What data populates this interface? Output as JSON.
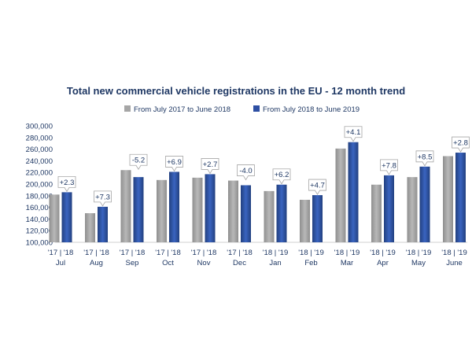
{
  "chart_data": {
    "type": "bar",
    "title": "Total new commercial vehicle registrations in the EU - 12 month trend",
    "xlabel": "",
    "ylabel": "",
    "ylim": [
      100000,
      300000
    ],
    "yticks": [
      "300,000",
      "280,000",
      "260,000",
      "240,000",
      "220,000",
      "200,000",
      "180,000",
      "160,000",
      "140,000",
      "120,000",
      "100,000"
    ],
    "ytick_values": [
      300000,
      280000,
      260000,
      240000,
      220000,
      200000,
      180000,
      160000,
      140000,
      120000,
      100000
    ],
    "legend_position": "top",
    "categories": [
      "Jul",
      "Aug",
      "Sep",
      "Oct",
      "Nov",
      "Dec",
      "Jan",
      "Feb",
      "Mar",
      "Apr",
      "May",
      "June"
    ],
    "pair_labels": [
      "'17 | '18",
      "'17 | '18",
      "'17 | '18",
      "'17 | '18",
      "'17 | '18",
      "'17 | '18",
      "'18 | '19",
      "'18 | '19",
      "'18 | '19",
      "'18 | '19",
      "'18 | '19",
      "'18 | '19"
    ],
    "series": [
      {
        "name": "From July 2017 to June 2018",
        "color": "#a6a6a6",
        "values": [
          182000,
          150000,
          224000,
          207000,
          211000,
          206000,
          188000,
          173000,
          261000,
          199000,
          212000,
          248000
        ]
      },
      {
        "name": "From July 2018 to June 2019",
        "color": "#2e4fa3",
        "values": [
          186000,
          161000,
          212000,
          221000,
          217000,
          198000,
          199000,
          181000,
          272000,
          215000,
          230000,
          254000
        ]
      }
    ],
    "annotations": [
      "+2.3",
      "+7.3",
      "-5.2",
      "+6.9",
      "+2.7",
      "-4.0",
      "+6.2",
      "+4.7",
      "+4.1",
      "+7.8",
      "+8.5",
      "+2.8"
    ]
  }
}
